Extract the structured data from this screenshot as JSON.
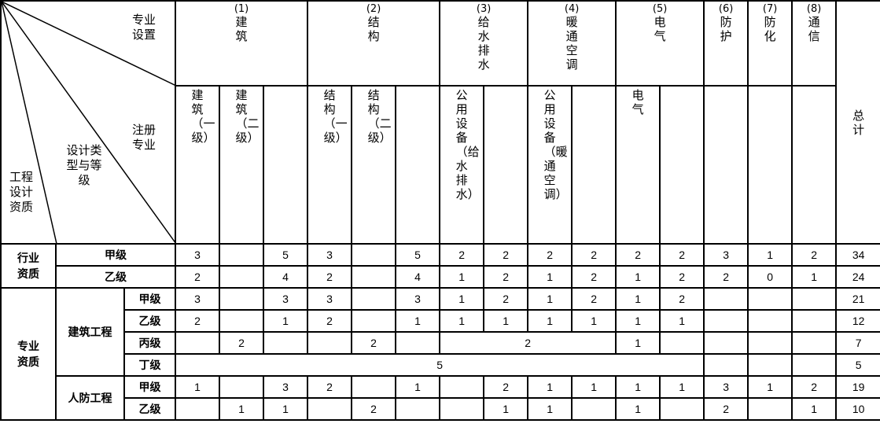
{
  "corner": {
    "specialty_setting": "专业设置",
    "registered_specialty": "注册专业",
    "design_type_grade": "设计类型与等级",
    "qualification": "工程设计资质"
  },
  "groups": [
    {
      "num": "(1)",
      "name": "建筑"
    },
    {
      "num": "(2)",
      "name": "结构"
    },
    {
      "num": "(3)",
      "name": "给水排水"
    },
    {
      "num": "(4)",
      "name": "暖通空调"
    },
    {
      "num": "(5)",
      "name": "电气"
    },
    {
      "num": "(6)",
      "name": "防护"
    },
    {
      "num": "(7)",
      "name": "防化"
    },
    {
      "num": "(8)",
      "name": "通信"
    }
  ],
  "total_label": "总计",
  "sub_labels": [
    "建筑（一级）",
    "建筑（二级）",
    "",
    "结构（一级）",
    "结构（二级）",
    "",
    "公用设备（给水排水）",
    "",
    "公用设备（暖通空调）",
    "",
    "电气",
    "",
    "",
    "",
    ""
  ],
  "sections": {
    "industry": "行业资质",
    "specialty": "专业资质",
    "building": "建筑工程",
    "civil_defense": "人防工程"
  },
  "rows": [
    {
      "label": "甲级",
      "cells": [
        "3",
        "",
        "5",
        "3",
        "",
        "5",
        "2",
        "2",
        "2",
        "2",
        "2",
        "2",
        "3",
        "1",
        "2"
      ],
      "total": "34"
    },
    {
      "label": "乙级",
      "cells": [
        "2",
        "",
        "4",
        "2",
        "",
        "4",
        "1",
        "2",
        "1",
        "2",
        "1",
        "2",
        "2",
        "0",
        "1"
      ],
      "total": "24"
    },
    {
      "label": "甲级",
      "cells": [
        "3",
        "",
        "3",
        "3",
        "",
        "3",
        "1",
        "2",
        "1",
        "2",
        "1",
        "2",
        "",
        "",
        ""
      ],
      "total": "21"
    },
    {
      "label": "乙级",
      "cells": [
        "2",
        "",
        "1",
        "2",
        "",
        "1",
        "1",
        "1",
        "1",
        "1",
        "1",
        "1",
        "",
        "",
        ""
      ],
      "total": "12"
    },
    {
      "label": "丙级",
      "cells": [
        "",
        "2",
        "",
        "",
        "2",
        "",
        "2",
        "1",
        "",
        "",
        "",
        ""
      ],
      "total": "7"
    },
    {
      "label": "丁级",
      "cells": [
        "5",
        "",
        "",
        ""
      ],
      "total": "5"
    },
    {
      "label": "甲级",
      "cells": [
        "1",
        "",
        "3",
        "2",
        "",
        "1",
        "",
        "2",
        "1",
        "1",
        "1",
        "1",
        "3",
        "1",
        "2"
      ],
      "total": "19"
    },
    {
      "label": "乙级",
      "cells": [
        "",
        "1",
        "1",
        "",
        "2",
        "",
        "",
        "1",
        "1",
        "",
        "1",
        "",
        "2",
        "",
        "1"
      ],
      "total": "10"
    }
  ]
}
